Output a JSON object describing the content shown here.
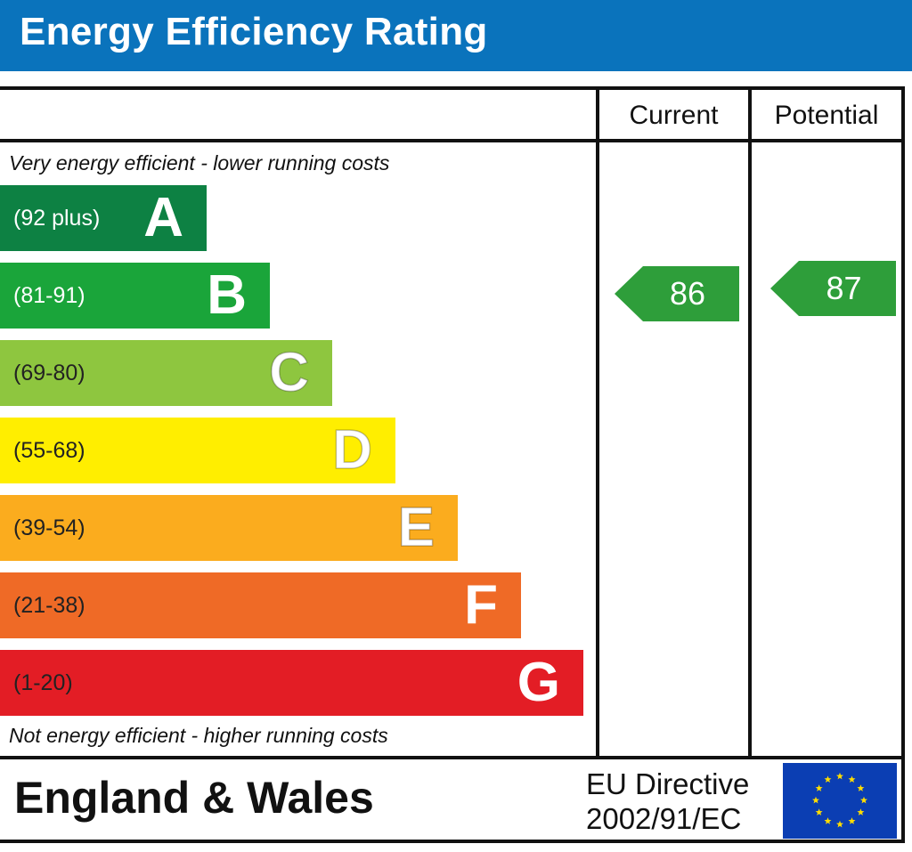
{
  "title": "Energy Efficiency Rating",
  "columns": {
    "current": "Current",
    "potential": "Potential"
  },
  "notes": {
    "top": "Very energy efficient - lower running costs",
    "bottom": "Not energy efficient - higher running costs"
  },
  "footer": {
    "region": "England & Wales",
    "directive_line1": "EU Directive",
    "directive_line2": "2002/91/EC"
  },
  "colors": {
    "title_bar": "#0a73bc",
    "A": "#0d8143",
    "B": "#1aa53a",
    "C": "#8ec63f",
    "D": "#ffee00",
    "E": "#fbac1e",
    "F": "#ef6a26",
    "G": "#e31d25",
    "rating_arrow": "#2e9e3a"
  },
  "chart_data": {
    "type": "bar",
    "categories": [
      "A",
      "B",
      "C",
      "D",
      "E",
      "F",
      "G"
    ],
    "ranges": [
      "(92 plus)",
      "(81-91)",
      "(69-80)",
      "(55-68)",
      "(39-54)",
      "(21-38)",
      "(1-20)"
    ],
    "current_rating": 86,
    "potential_rating": 87,
    "current_band": "B",
    "potential_band": "B"
  }
}
